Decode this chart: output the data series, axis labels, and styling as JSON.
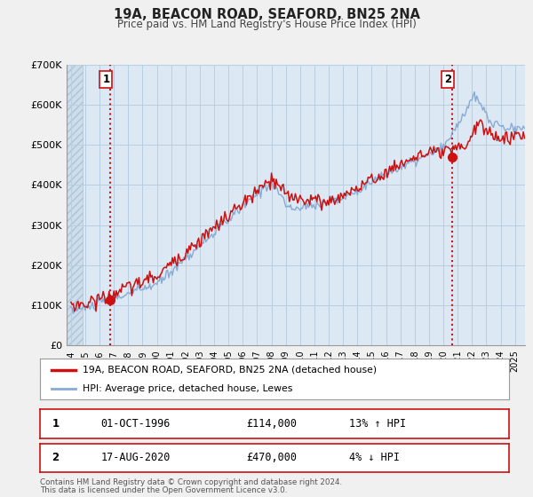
{
  "title": "19A, BEACON ROAD, SEAFORD, BN25 2NA",
  "subtitle": "Price paid vs. HM Land Registry's House Price Index (HPI)",
  "ylim": [
    0,
    700000
  ],
  "yticks": [
    0,
    100000,
    200000,
    300000,
    400000,
    500000,
    600000,
    700000
  ],
  "ytick_labels": [
    "£0",
    "£100K",
    "£200K",
    "£300K",
    "£400K",
    "£500K",
    "£600K",
    "£700K"
  ],
  "xlim_start": 1993.7,
  "xlim_end": 2025.7,
  "xticks": [
    1994,
    1995,
    1996,
    1997,
    1998,
    1999,
    2000,
    2001,
    2002,
    2003,
    2004,
    2005,
    2006,
    2007,
    2008,
    2009,
    2010,
    2011,
    2012,
    2013,
    2014,
    2015,
    2016,
    2017,
    2018,
    2019,
    2020,
    2021,
    2022,
    2023,
    2024,
    2025
  ],
  "bg_color": "#f0f0f0",
  "plot_bg_color": "#dce9f5",
  "hatch_x_end": 1994.83,
  "grid_color": "#b8cfe0",
  "red_line_color": "#cc1111",
  "blue_line_color": "#88aad4",
  "marker1_x": 1996.75,
  "marker1_y": 114000,
  "marker2_x": 2020.62,
  "marker2_y": 470000,
  "vline1_x": 1996.75,
  "vline2_x": 2020.62,
  "legend_label1": "19A, BEACON ROAD, SEAFORD, BN25 2NA (detached house)",
  "legend_label2": "HPI: Average price, detached house, Lewes",
  "table_row1": [
    "1",
    "01-OCT-1996",
    "£114,000",
    "13% ↑ HPI"
  ],
  "table_row2": [
    "2",
    "17-AUG-2020",
    "£470,000",
    "4% ↓ HPI"
  ],
  "footnote1": "Contains HM Land Registry data © Crown copyright and database right 2024.",
  "footnote2": "This data is licensed under the Open Government Licence v3.0."
}
